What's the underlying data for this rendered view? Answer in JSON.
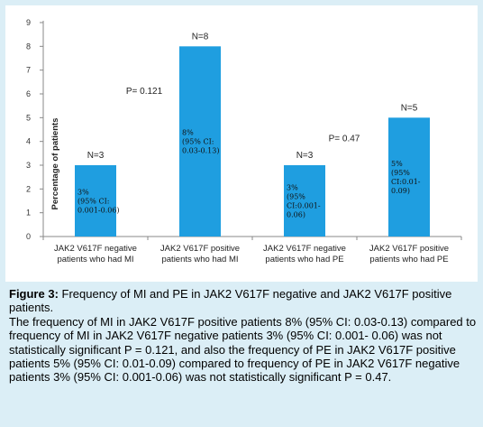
{
  "chart_data": {
    "type": "bar",
    "ylabel": "Percentage of patients",
    "ylim": [
      0,
      9
    ],
    "yticks": [
      "0",
      "1",
      "2",
      "3",
      "4",
      "5",
      "6",
      "7",
      "8",
      "9"
    ],
    "bar_color": "#1f9ee0",
    "categories": [
      [
        "JAK2 V617F negative",
        "patients who had MI"
      ],
      [
        "JAK2 V617F positive",
        "patients who had MI"
      ],
      [
        "JAK2 V617F negative",
        "patients who had PE"
      ],
      [
        "JAK2 V617F positive",
        "patients who had PE"
      ]
    ],
    "values": [
      3,
      8,
      3,
      5
    ],
    "n_labels": [
      "N=3",
      "N=8",
      "N=3",
      "N=5"
    ],
    "bar_labels": [
      [
        "3%",
        "(95% CI:",
        "0.001-0.06)"
      ],
      [
        "8%",
        "(95% CI:",
        "0.03-0.13)"
      ],
      [
        "3%",
        "(95%",
        "CI:0.001-",
        "0.06)"
      ],
      [
        "5%",
        "(95%",
        "CI:0.01-",
        "0.09)"
      ]
    ],
    "annotations": [
      "P= 0.121",
      "P= 0.47"
    ],
    "grid": false
  },
  "caption": {
    "label": "Figure 3:",
    "title": " Frequency of MI and PE in JAK2 V617F negative and JAK2 V617F positive patients.",
    "body": "The frequency of MI in JAK2 V617F positive patients 8% (95% CI: 0.03-0.13) compared to frequency of MI in JAK2 V617F negative patients 3% (95% CI: 0.001- 0.06) was not statistically significant P = 0.121, and also the frequency of PE in JAK2 V617F positive patients 5% (95% CI: 0.01-0.09) compared to frequency of PE in JAK2 V617F negative patients 3% (95% CI: 0.001-0.06) was not statistically significant P = 0.47."
  }
}
